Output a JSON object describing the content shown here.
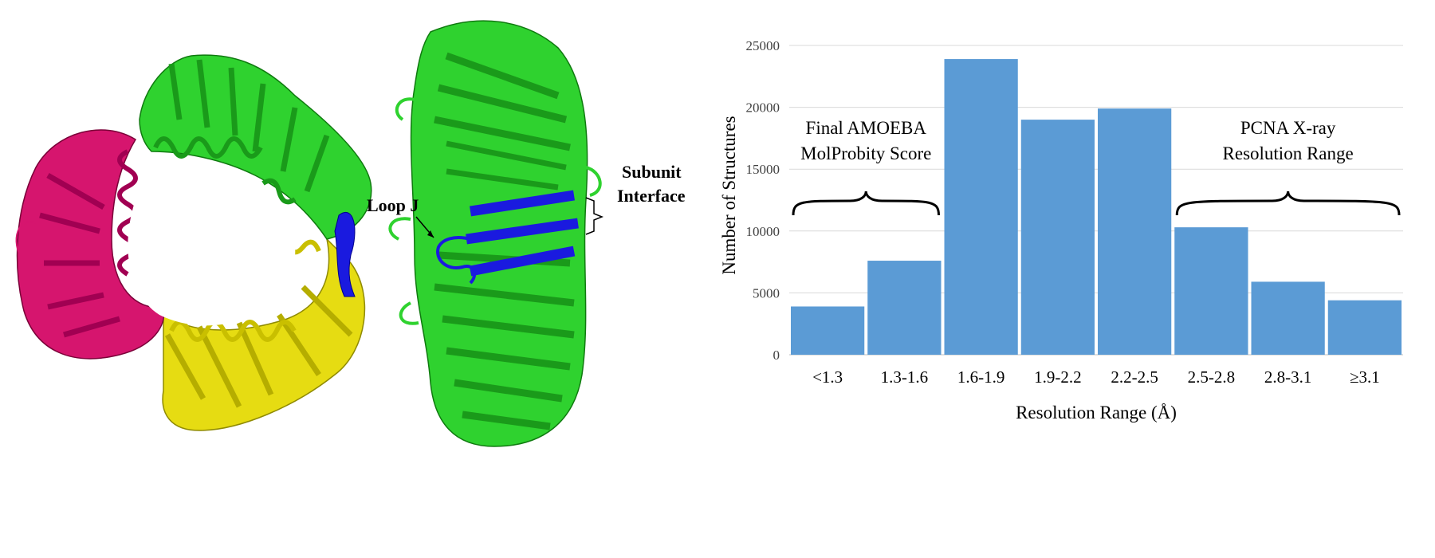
{
  "molecule_labels": {
    "loop": "Loop J",
    "interface_line1": "Subunit",
    "interface_line2": "Interface"
  },
  "colors": {
    "green": "#2fd22f",
    "dark_green": "#1a9a1a",
    "magenta": "#d6156e",
    "yellow": "#e6dc12",
    "blue": "#1a1adf",
    "bar": "#5b9bd5"
  },
  "chart_data": {
    "type": "bar",
    "categories": [
      "<1.3",
      "1.3-1.6",
      "1.6-1.9",
      "1.9-2.2",
      "2.2-2.5",
      "2.5-2.8",
      "2.8-3.1",
      "≥3.1"
    ],
    "values": [
      3900,
      7600,
      23900,
      19000,
      19900,
      10300,
      5900,
      4400
    ],
    "title": "",
    "xlabel": "Resolution Range (Å)",
    "ylabel": "Number of Structures",
    "ylim": [
      0,
      25000
    ],
    "yticks": [
      0,
      5000,
      10000,
      15000,
      20000,
      25000
    ],
    "grid": true,
    "annotations": [
      {
        "lines": [
          "Final AMOEBA",
          "MolProbity Score"
        ],
        "spans": [
          "<1.3",
          "1.3-1.6"
        ]
      },
      {
        "lines": [
          "PCNA X-ray",
          "Resolution Range"
        ],
        "spans": [
          "2.5-2.8",
          "≥3.1"
        ]
      }
    ]
  }
}
